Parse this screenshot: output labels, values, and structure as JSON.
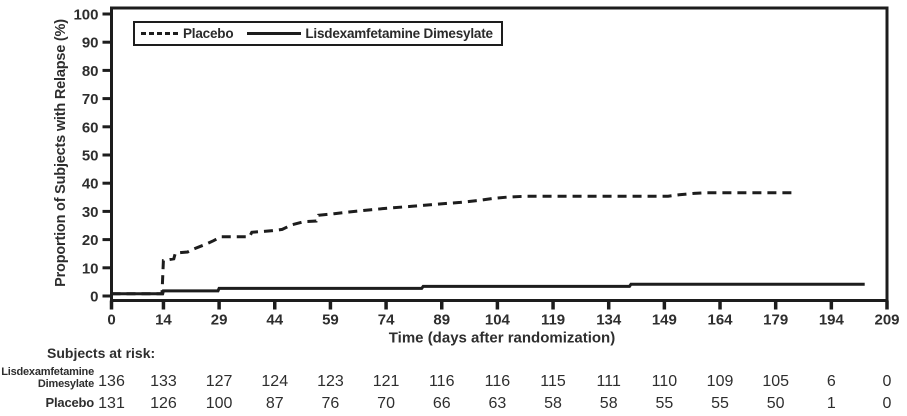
{
  "figure": {
    "ylabel": "Proportion of Subjects with Relapse (%)",
    "xlabel": "Time (days after randomization)",
    "line_color": "#1d1d1d",
    "text_color": "#2e2e2e"
  },
  "legend": {
    "items": [
      {
        "label": "Placebo",
        "style": "dashed"
      },
      {
        "label": "Lisdexamfetamine Dimesylate",
        "style": "solid"
      }
    ]
  },
  "chart_data": {
    "type": "line",
    "subtype": "kaplan-meier-step",
    "title": "",
    "xlabel": "Time (days after randomization)",
    "ylabel": "Proportion of Subjects with Relapse (%)",
    "xlim": [
      0,
      209
    ],
    "ylim": [
      0,
      100
    ],
    "xticks": [
      0,
      14,
      29,
      44,
      59,
      74,
      89,
      104,
      119,
      134,
      149,
      164,
      179,
      194,
      209
    ],
    "yticks": [
      0,
      10,
      20,
      30,
      40,
      50,
      60,
      70,
      80,
      90,
      100
    ],
    "grid": false,
    "legend_position": "top-left-inside",
    "series": [
      {
        "name": "Placebo",
        "line_style": "dashed",
        "points": [
          [
            0,
            0.8
          ],
          [
            13.6,
            0.8
          ],
          [
            14,
            12.6
          ],
          [
            16.8,
            13.2
          ],
          [
            17.2,
            15.2
          ],
          [
            20.5,
            15.6
          ],
          [
            22,
            16.6
          ],
          [
            25.5,
            18.4
          ],
          [
            27.5,
            19.6
          ],
          [
            29.5,
            21
          ],
          [
            37.2,
            21
          ],
          [
            37.8,
            22.6
          ],
          [
            43.5,
            23.2
          ],
          [
            46,
            23.6
          ],
          [
            48.5,
            25.2
          ],
          [
            52,
            26.4
          ],
          [
            55.2,
            26.6
          ],
          [
            55.8,
            28.6
          ],
          [
            60,
            29.2
          ],
          [
            64,
            29.8
          ],
          [
            70,
            30.6
          ],
          [
            75,
            31.2
          ],
          [
            81,
            31.8
          ],
          [
            88,
            32.6
          ],
          [
            94,
            33.2
          ],
          [
            99,
            33.9
          ],
          [
            103,
            34.6
          ],
          [
            107,
            35.1
          ],
          [
            112,
            35.4
          ],
          [
            150,
            35.4
          ],
          [
            153,
            35.9
          ],
          [
            157,
            36.4
          ],
          [
            160,
            36.6
          ],
          [
            184,
            36.6
          ]
        ]
      },
      {
        "name": "Lisdexamfetamine Dimesylate",
        "line_style": "solid",
        "points": [
          [
            0,
            0.8
          ],
          [
            13.8,
            0.8
          ],
          [
            14,
            1.8
          ],
          [
            28.7,
            1.8
          ],
          [
            29,
            2.7
          ],
          [
            83.6,
            2.7
          ],
          [
            84,
            3.4
          ],
          [
            139.6,
            3.4
          ],
          [
            140,
            4.2
          ],
          [
            203,
            4.2
          ]
        ]
      }
    ],
    "subjects_at_risk": {
      "title": "Subjects at risk:",
      "time_points": [
        0,
        14,
        29,
        44,
        59,
        74,
        89,
        104,
        119,
        134,
        149,
        164,
        179,
        194,
        209
      ],
      "rows": [
        {
          "label_lines": [
            "Lisdexamfetamine",
            "Dimesylate"
          ],
          "values": [
            136,
            133,
            127,
            124,
            123,
            121,
            116,
            116,
            115,
            111,
            110,
            109,
            105,
            6,
            0
          ]
        },
        {
          "label_lines": [
            "Placebo"
          ],
          "values": [
            131,
            126,
            100,
            87,
            76,
            70,
            66,
            63,
            58,
            58,
            55,
            55,
            50,
            1,
            0
          ]
        }
      ]
    }
  }
}
